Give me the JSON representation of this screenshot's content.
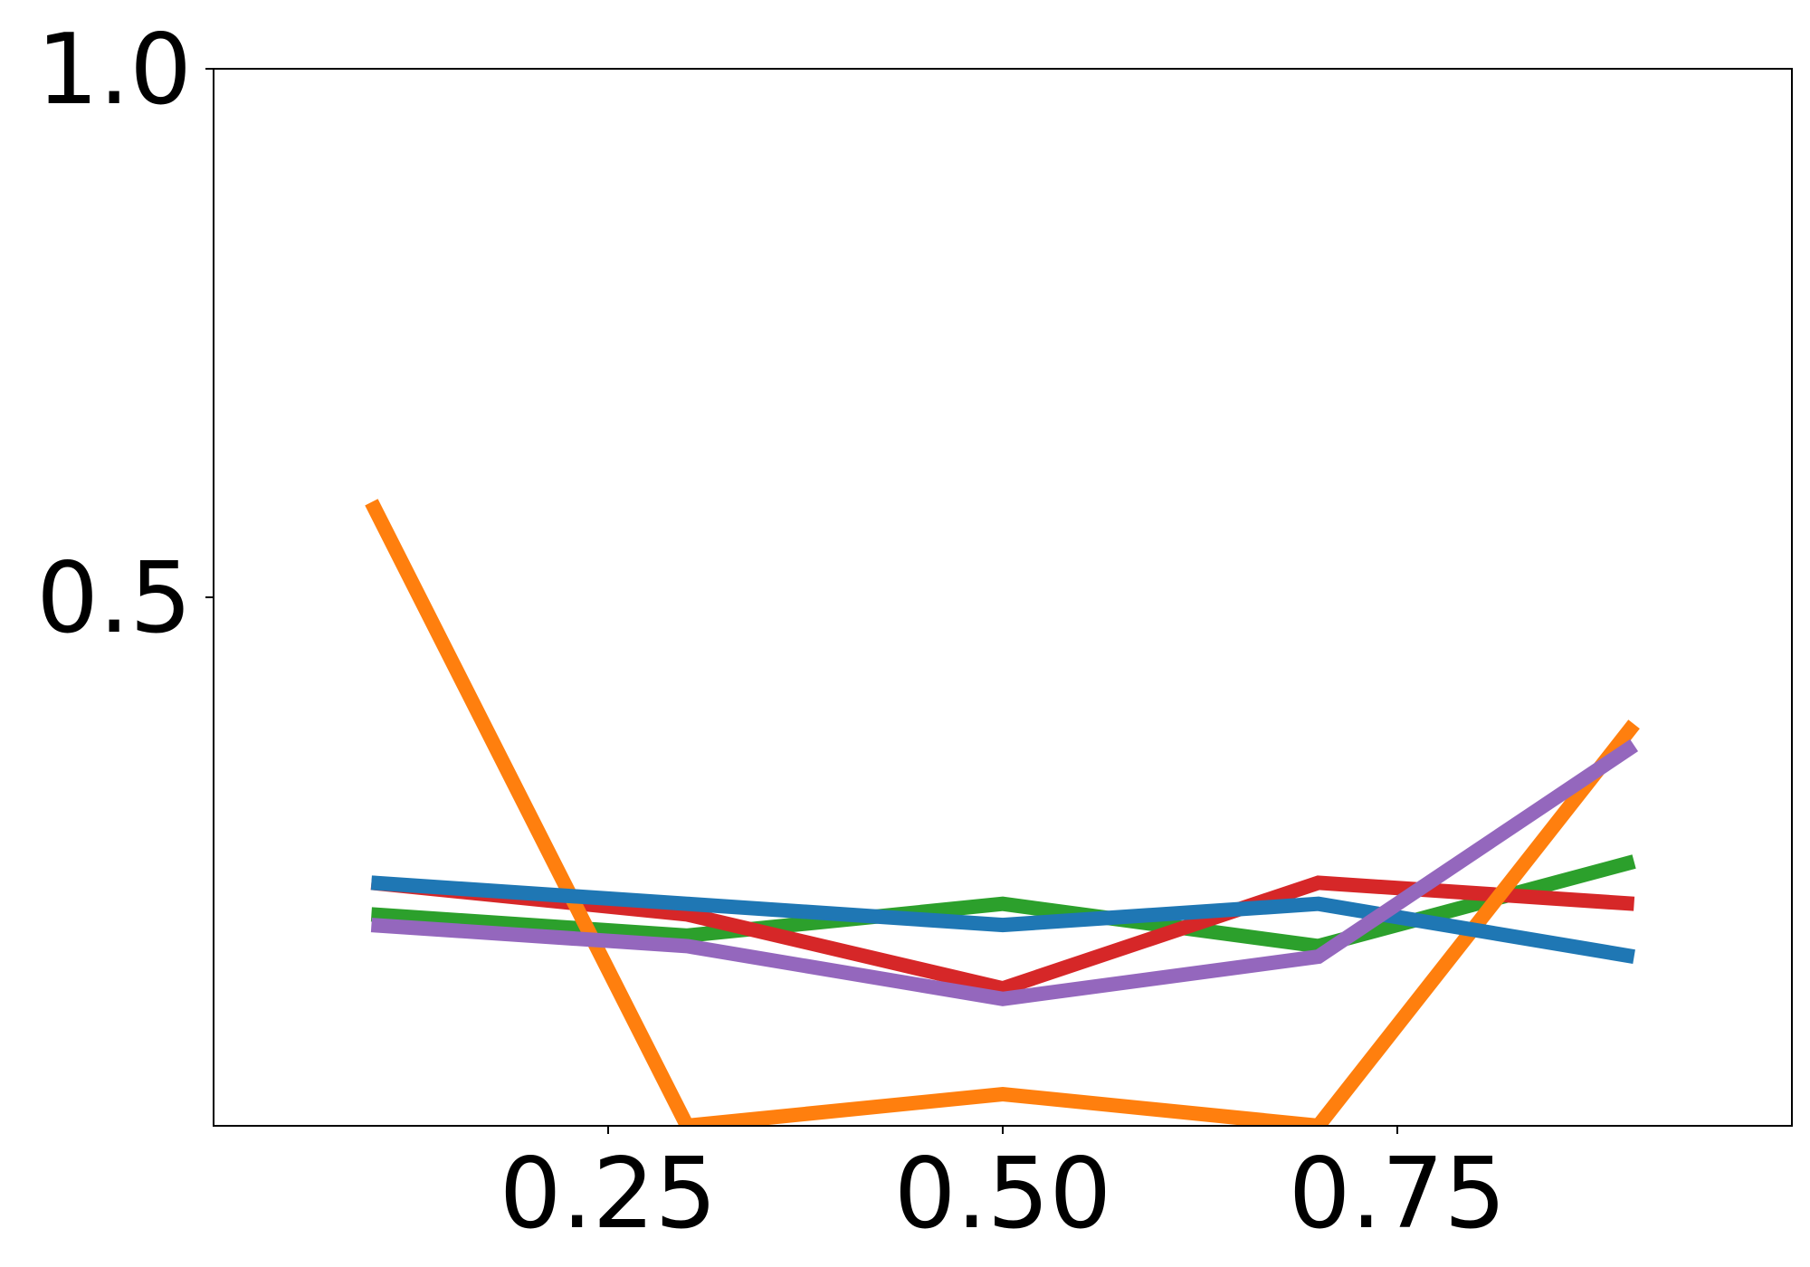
{
  "chart_data": {
    "type": "line",
    "title": "",
    "xlabel": "",
    "ylabel": "",
    "xlim": [
      0.0,
      1.0
    ],
    "ylim": [
      0.0,
      1.0
    ],
    "grid": false,
    "legend": "none",
    "x_ticks": [
      {
        "value": 0.25,
        "label": "0.25"
      },
      {
        "value": 0.5,
        "label": "0.50"
      },
      {
        "value": 0.75,
        "label": "0.75"
      }
    ],
    "y_ticks": [
      {
        "value": 0.5,
        "label": "0.5"
      },
      {
        "value": 1.0,
        "label": "1.0"
      }
    ],
    "series": [
      {
        "color": "#2ca02c",
        "x": [
          0.1,
          0.3,
          0.5,
          0.7,
          0.9
        ],
        "y": [
          0.2,
          0.18,
          0.21,
          0.17,
          0.25
        ]
      },
      {
        "color": "#d62728",
        "x": [
          0.1,
          0.3,
          0.5,
          0.7,
          0.9
        ],
        "y": [
          0.23,
          0.2,
          0.13,
          0.23,
          0.21
        ]
      },
      {
        "color": "#ff7f0e",
        "x": [
          0.1,
          0.3,
          0.5,
          0.7,
          0.9
        ],
        "y": [
          0.59,
          0.0,
          0.03,
          0.0,
          0.38
        ]
      },
      {
        "color": "#1f77b4",
        "x": [
          0.1,
          0.3,
          0.5,
          0.7,
          0.9
        ],
        "y": [
          0.23,
          0.21,
          0.19,
          0.21,
          0.16
        ]
      },
      {
        "color": "#9467bd",
        "x": [
          0.1,
          0.3,
          0.5,
          0.7,
          0.9
        ],
        "y": [
          0.19,
          0.17,
          0.12,
          0.16,
          0.36
        ]
      }
    ]
  }
}
